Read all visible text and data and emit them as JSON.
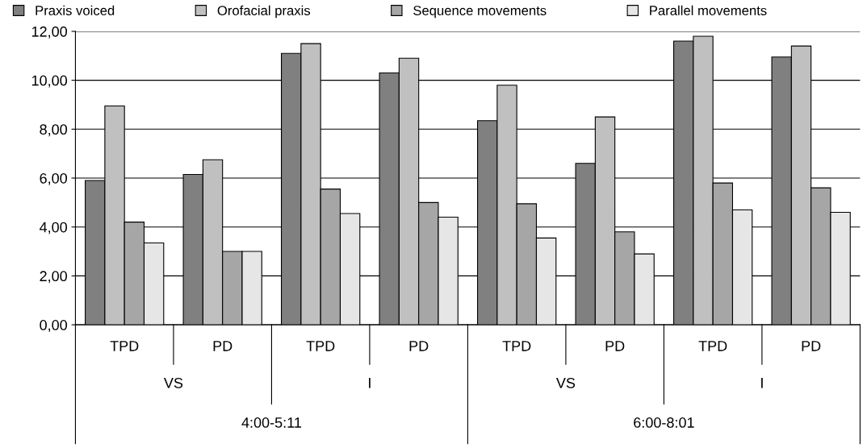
{
  "chart_data": {
    "type": "bar",
    "categories": [
      "TPD",
      "PD",
      "TPD",
      "PD",
      "TPD",
      "PD",
      "TPD",
      "PD"
    ],
    "series": [
      {
        "name": "Praxis voiced",
        "color": "#808080",
        "values": [
          5.9,
          6.15,
          11.1,
          10.3,
          8.35,
          6.6,
          11.6,
          10.95
        ]
      },
      {
        "name": "Orofacial praxis",
        "color": "#c0c0c0",
        "values": [
          8.95,
          6.75,
          11.5,
          10.9,
          9.8,
          8.5,
          11.8,
          11.4
        ]
      },
      {
        "name": "Sequence movements",
        "color": "#a6a6a6",
        "values": [
          4.2,
          3.0,
          5.55,
          5.0,
          4.95,
          3.8,
          5.8,
          5.6
        ]
      },
      {
        "name": "Parallel movements",
        "color": "#e6e6e6",
        "values": [
          3.35,
          3.0,
          4.55,
          4.4,
          3.55,
          2.9,
          4.7,
          4.6
        ]
      }
    ],
    "annotations": [
      "VS",
      "I",
      "VS",
      "I",
      "4:00-5:11",
      "6:00-8:01"
    ],
    "ylim": [
      0,
      12
    ],
    "yticks": [
      {
        "value": 0,
        "label": "0,00"
      },
      {
        "value": 2,
        "label": "2,00"
      },
      {
        "value": 4,
        "label": "4,00"
      },
      {
        "value": 6,
        "label": "6,00"
      },
      {
        "value": 8,
        "label": "8,00"
      },
      {
        "value": 10,
        "label": "10,00"
      },
      {
        "value": 12,
        "label": "12,00"
      }
    ],
    "grid": "y",
    "legend": "top"
  }
}
